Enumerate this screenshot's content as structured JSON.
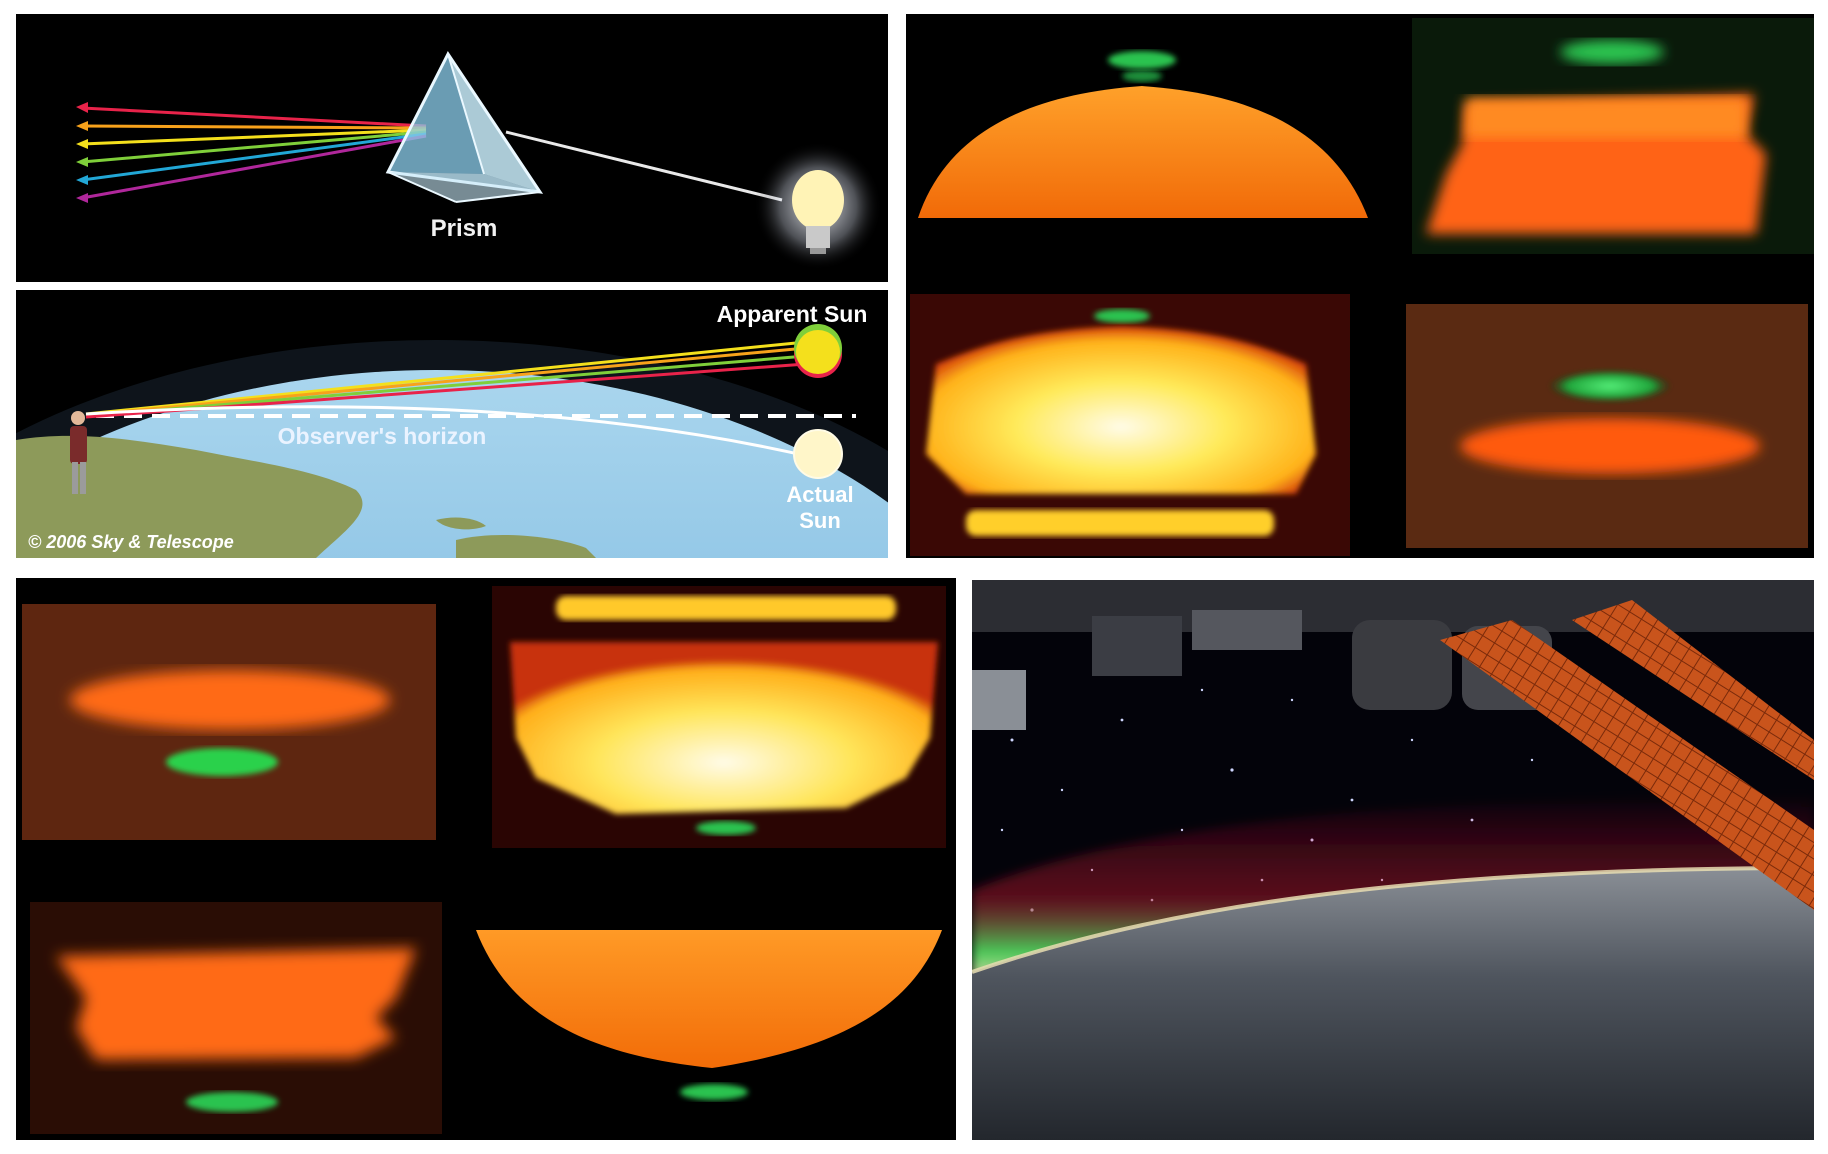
{
  "diagram": {
    "prism_label": "Prism",
    "apparent_sun_label": "Apparent Sun",
    "horizon_label": "Observer's horizon",
    "actual_sun_label_line1": "Actual",
    "actual_sun_label_line2": "Sun",
    "copyright": "© 2006 Sky & Telescope"
  },
  "colors": {
    "background": "#000000",
    "border": "#ffffff",
    "green_flash": "#35d24a",
    "sun_orange": "#ff7a10",
    "sun_yellow": "#ffe24a",
    "spectrum": [
      "#e8234a",
      "#f7a21b",
      "#f4e01c",
      "#7fcf3a",
      "#22a7d6",
      "#b0279b"
    ]
  },
  "photos": [
    "green flash atop setting sun, orange disk",
    "green flash above stratified red sun",
    "green flash atop bright yellow sun",
    "green blob above flattened orange sun",
    "green flash below orange sun",
    "green flash below bright yellow sun",
    "green glow below layered orange sun",
    "green flash below orange sun disk",
    "green airglow over Earth limb from ISS"
  ]
}
